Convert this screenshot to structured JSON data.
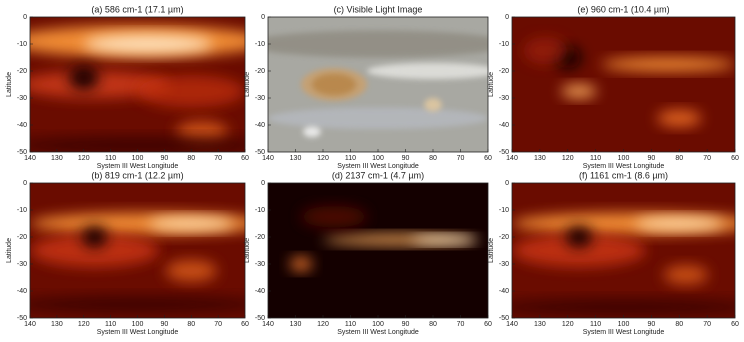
{
  "chart_data": [
    {
      "type": "image",
      "style": "heat",
      "title": "(a) 586 cm-1 (17.1 µm)",
      "xlabel": "System III West Longitude",
      "ylabel": "Latitude",
      "xlim": [
        140,
        60
      ],
      "ylim": [
        -50,
        0
      ],
      "xticks": [
        140,
        130,
        120,
        110,
        100,
        90,
        80,
        70,
        60
      ],
      "yticks": [
        0,
        -10,
        -20,
        -30,
        -40,
        -50
      ]
    },
    {
      "type": "image",
      "style": "visible",
      "title": "(c) Visible Light Image",
      "xlabel": "System III West Longitude",
      "ylabel": "Latitude",
      "xlim": [
        140,
        60
      ],
      "ylim": [
        -50,
        0
      ],
      "xticks": [
        140,
        130,
        120,
        110,
        100,
        90,
        80,
        70,
        60
      ],
      "yticks": [
        0,
        -10,
        -20,
        -30,
        -40,
        -50
      ]
    },
    {
      "type": "image",
      "style": "heat",
      "title": "(e) 960 cm-1 (10.4 µm)",
      "xlabel": "System III West Longitude",
      "ylabel": "Latitude",
      "xlim": [
        140,
        60
      ],
      "ylim": [
        -50,
        0
      ],
      "xticks": [
        140,
        130,
        120,
        110,
        100,
        90,
        80,
        70,
        60
      ],
      "yticks": [
        0,
        -10,
        -20,
        -30,
        -40,
        -50
      ]
    },
    {
      "type": "image",
      "style": "heat",
      "title": "(b) 819 cm-1 (12.2 µm)",
      "xlabel": "System III West Longitude",
      "ylabel": "Latitude",
      "xlim": [
        140,
        60
      ],
      "ylim": [
        -50,
        0
      ],
      "xticks": [
        140,
        130,
        120,
        110,
        100,
        90,
        80,
        70,
        60
      ],
      "yticks": [
        0,
        -10,
        -20,
        -30,
        -40,
        -50
      ]
    },
    {
      "type": "image",
      "style": "heat",
      "title": "(d) 2137 cm-1 (4.7 µm)",
      "xlabel": "System III West Longitude",
      "ylabel": "Latitude",
      "xlim": [
        140,
        60
      ],
      "ylim": [
        -50,
        0
      ],
      "xticks": [
        140,
        130,
        120,
        110,
        100,
        90,
        80,
        70,
        60
      ],
      "yticks": [
        0,
        -10,
        -20,
        -30,
        -40,
        -50
      ]
    },
    {
      "type": "image",
      "style": "heat",
      "title": "(f) 1161 cm-1 (8.6 µm)",
      "xlabel": "System III West Longitude",
      "ylabel": "Latitude",
      "xlim": [
        140,
        60
      ],
      "ylim": [
        -50,
        0
      ],
      "xticks": [
        140,
        130,
        120,
        110,
        100,
        90,
        80,
        70,
        60
      ],
      "yticks": [
        0,
        -10,
        -20,
        -30,
        -40,
        -50
      ]
    }
  ]
}
